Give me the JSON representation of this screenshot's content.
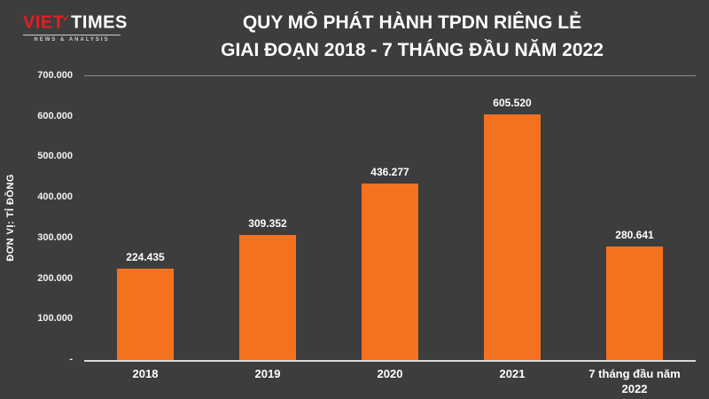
{
  "logo": {
    "viet": "VIET",
    "times": "TIMES",
    "tagline": "NEWS & ANALYSIS"
  },
  "title": {
    "line1": "QUY MÔ PHÁT HÀNH TPDN RIÊNG LẺ",
    "line2": "GIAI ĐOẠN 2018 - 7 THÁNG ĐẦU NĂM 2022"
  },
  "chart_data": {
    "type": "bar",
    "title": "QUY MÔ PHÁT HÀNH TPDN RIÊNG LẺ GIAI ĐOẠN 2018 - 7 THÁNG ĐẦU NĂM 2022",
    "categories": [
      "2018",
      "2019",
      "2020",
      "2021",
      "7 tháng đầu năm 2022"
    ],
    "values": [
      224435,
      309352,
      436277,
      605520,
      280641
    ],
    "value_labels": [
      "224.435",
      "309.352",
      "436.277",
      "605.520",
      "280.641"
    ],
    "xlabel": "",
    "ylabel": "ĐƠN VỊ: TỈ ĐỒNG",
    "ylim": [
      0,
      700000
    ],
    "yticks": [
      {
        "label": "700.000",
        "value": 700000
      },
      {
        "label": "600.000",
        "value": 600000
      },
      {
        "label": "500.000",
        "value": 500000
      },
      {
        "label": "400.000",
        "value": 400000
      },
      {
        "label": "300.000",
        "value": 300000
      },
      {
        "label": "200.000",
        "value": 200000
      },
      {
        "label": "100.000",
        "value": 100000
      },
      {
        "label": "-",
        "value": 0
      }
    ],
    "grid": false,
    "legend": "none",
    "bar_color": "#f4711f",
    "background_color": "#3d3d3d",
    "text_color": "#ffffff"
  }
}
